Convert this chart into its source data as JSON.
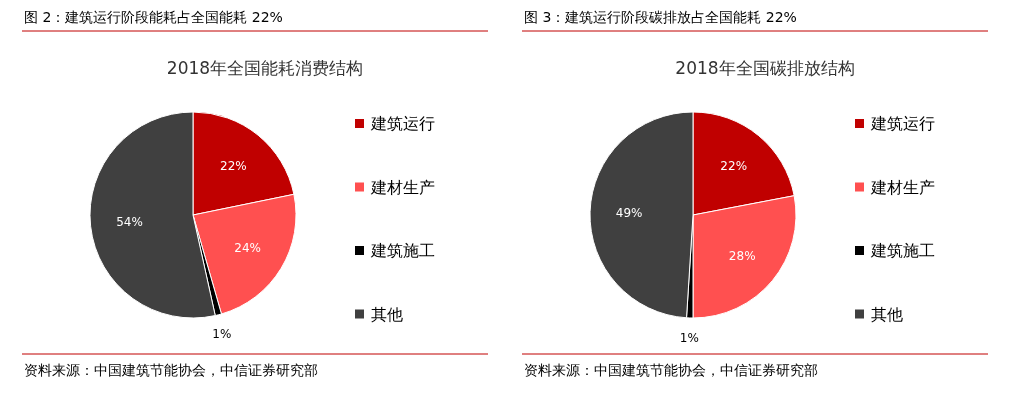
{
  "chart_data": [
    {
      "type": "pie",
      "title": "图 2：建筑运行阶段能耗占全国能耗 22%",
      "subtitle": "2018年全国能耗消费结构",
      "categories": [
        "建筑运行",
        "建材生产",
        "建筑施工",
        "其他"
      ],
      "values": [
        22,
        24,
        1,
        54
      ],
      "value_labels": [
        "22%",
        "24%",
        "1%",
        "54%"
      ],
      "colors": [
        "#c00000",
        "#ff5050",
        "#000000",
        "#404040"
      ],
      "legend": "right",
      "annotations": [
        "资料来源：中国建筑节能协会，中信证券研究部"
      ]
    },
    {
      "type": "pie",
      "title": "图 3：建筑运行阶段碳排放占全国能耗 22%",
      "subtitle": "2018年全国碳排放结构",
      "categories": [
        "建筑运行",
        "建材生产",
        "建筑施工",
        "其他"
      ],
      "values": [
        22,
        28,
        1,
        49
      ],
      "value_labels": [
        "22%",
        "28%",
        "1%",
        "49%"
      ],
      "colors": [
        "#c00000",
        "#ff5050",
        "#000000",
        "#404040"
      ],
      "legend": "right",
      "annotations": [
        "资料来源：中国建筑节能协会，中信证券研究部"
      ]
    }
  ]
}
